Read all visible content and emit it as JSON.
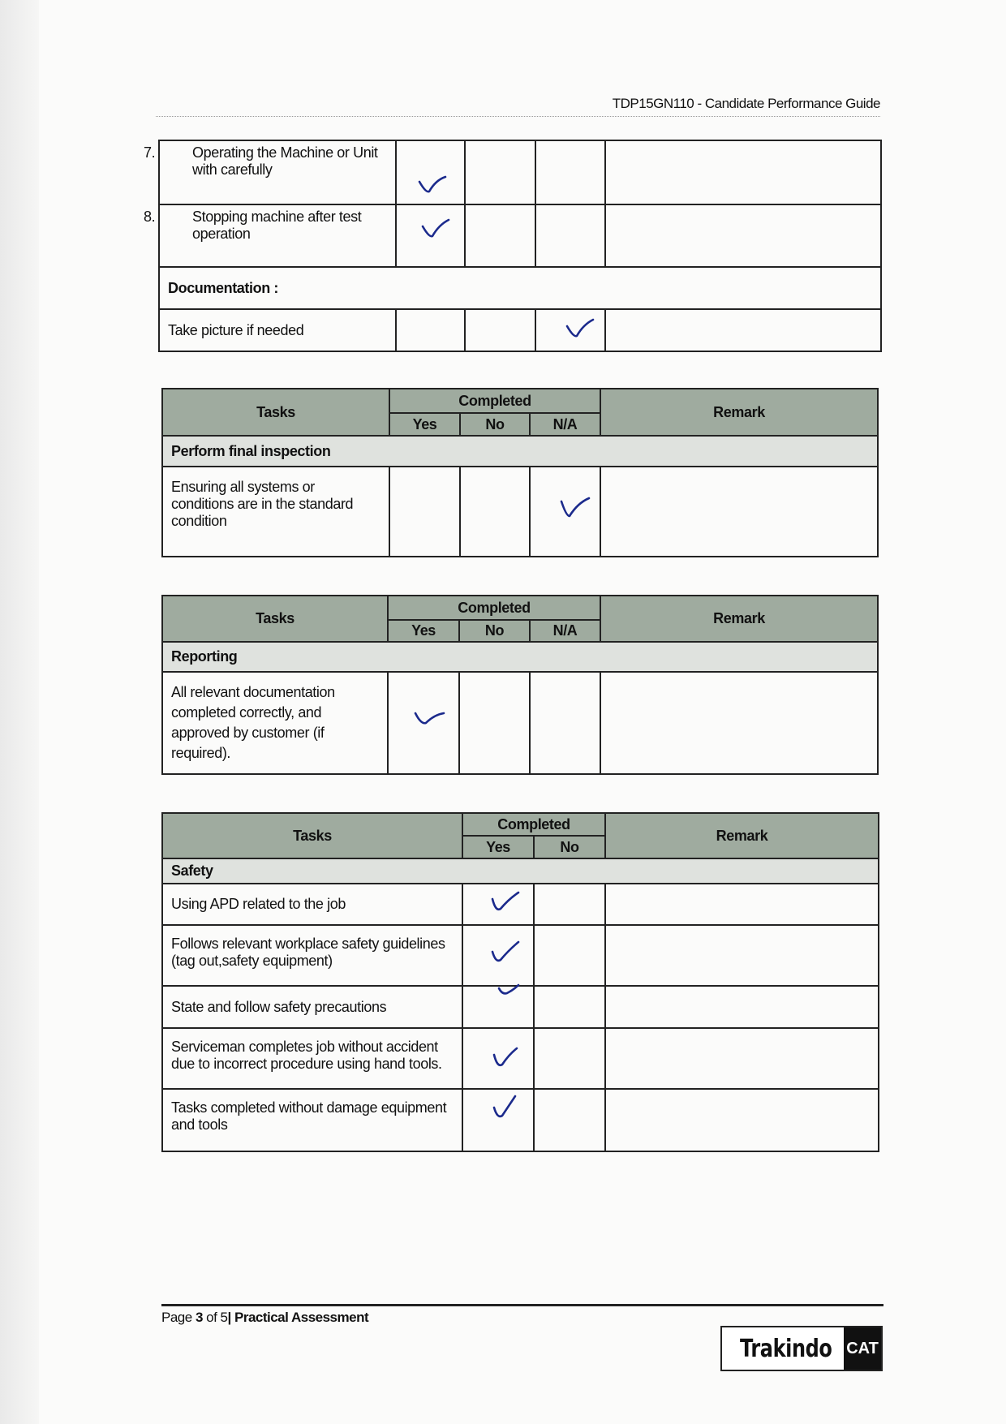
{
  "header": {
    "doc_title": "TDP15GN110 - Candidate Performance Guide"
  },
  "colors": {
    "header_fill": "#9fab9f",
    "section_fill": "#dfe2de",
    "check_ink": "#1b2a8c"
  },
  "table1": {
    "rows": [
      {
        "num": "7.",
        "text": "Operating the Machine or Unit with carefully",
        "mark": "yes"
      },
      {
        "num": "8.",
        "text": "Stopping machine after test operation",
        "mark": "yes"
      }
    ],
    "section": "Documentation :",
    "section_rows": [
      {
        "text": "Take picture if needed",
        "mark": "na"
      }
    ]
  },
  "table2": {
    "tasks": "Tasks",
    "completed": "Completed",
    "yes": "Yes",
    "no": "No",
    "na": "N/A",
    "remark": "Remark",
    "section": "Perform final inspection",
    "rows": [
      {
        "text": "Ensuring all systems or conditions are in the standard condition",
        "mark": "na"
      }
    ]
  },
  "table3": {
    "tasks": "Tasks",
    "completed": "Completed",
    "yes": "Yes",
    "no": "No",
    "na": "N/A",
    "remark": "Remark",
    "section": "Reporting",
    "rows": [
      {
        "text": "All relevant documentation completed correctly, and approved by customer (if required).",
        "mark": "yes"
      }
    ]
  },
  "table4": {
    "tasks": "Tasks",
    "completed": "Completed",
    "yes": "Yes",
    "no": "No",
    "remark": "Remark",
    "section": "Safety",
    "rows": [
      {
        "text": "Using APD related to the job",
        "mark": "yes"
      },
      {
        "text": "Follows relevant workplace safety guidelines (tag out,safety equipment)",
        "mark": "yes"
      },
      {
        "text": "State and follow safety precautions",
        "mark": "yes"
      },
      {
        "text": "Serviceman completes job without accident due to incorrect procedure using hand tools.",
        "mark": "yes"
      },
      {
        "text": "Tasks completed without damage equipment and tools",
        "mark": "yes"
      }
    ]
  },
  "footer": {
    "page_prefix": "Page ",
    "page_num": "3",
    "page_of": " of 5",
    "page_sep": "| ",
    "section": "Practical Assessment"
  },
  "logo": {
    "text": "Trakindo",
    "mark": "CAT"
  }
}
